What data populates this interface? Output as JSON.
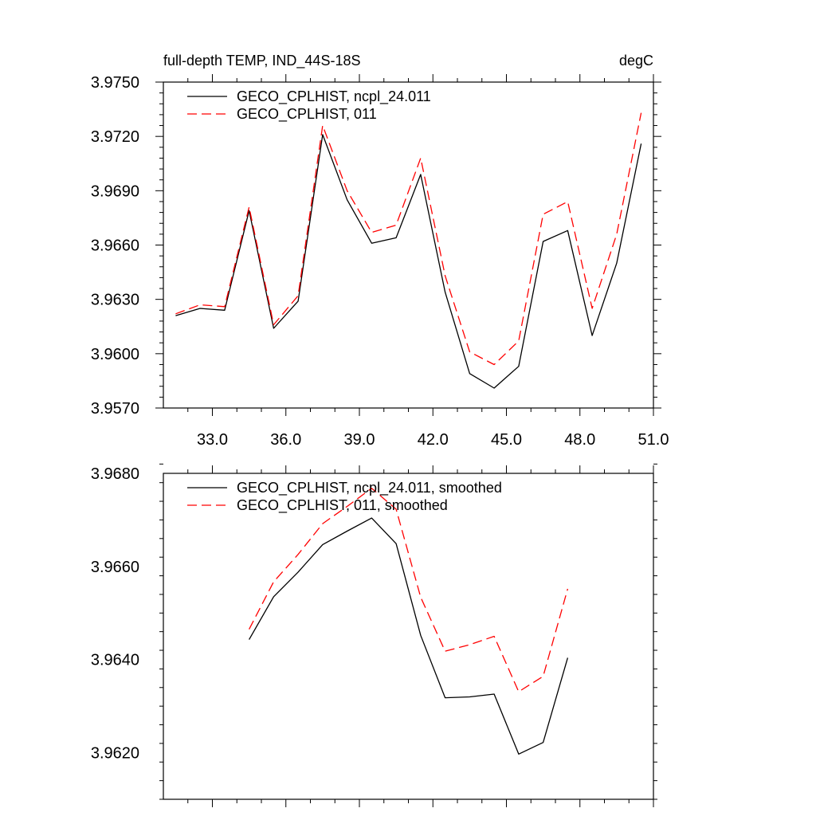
{
  "chart_data": [
    {
      "type": "line",
      "title": "full-depth TEMP, IND_44S-18S",
      "units": "degC",
      "xlabel": "",
      "ylabel": "",
      "xlim": [
        31.0,
        51.0
      ],
      "ylim": [
        3.957,
        3.975
      ],
      "xticks": [
        33.0,
        36.0,
        39.0,
        42.0,
        45.0,
        48.0,
        51.0
      ],
      "xtick_labels": [
        "33.0",
        "36.0",
        "39.0",
        "42.0",
        "45.0",
        "48.0",
        "51.0"
      ],
      "yticks": [
        3.957,
        3.96,
        3.963,
        3.966,
        3.969,
        3.972,
        3.975
      ],
      "ytick_labels": [
        "3.9570",
        "3.9600",
        "3.9630",
        "3.9660",
        "3.9690",
        "3.9720",
        "3.9750"
      ],
      "legend_position": "top-left",
      "x": [
        31.5,
        32.5,
        33.5,
        34.5,
        35.5,
        36.5,
        37.5,
        38.5,
        39.5,
        40.5,
        41.5,
        42.5,
        43.5,
        44.5,
        45.5,
        46.5,
        47.5,
        48.5,
        49.5,
        50.5
      ],
      "series": [
        {
          "name": "GECO_CPLHIST, ncpl_24.011",
          "color": "#000000",
          "dash": "solid",
          "values": [
            3.9621,
            3.9625,
            3.9624,
            3.9679,
            3.9614,
            3.9629,
            3.9721,
            3.9685,
            3.9661,
            3.9664,
            3.9699,
            3.9634,
            3.9589,
            3.9581,
            3.9593,
            3.9662,
            3.9668,
            3.961,
            3.965,
            3.9716
          ]
        },
        {
          "name": "GECO_CPLHIST, 011",
          "color": "#ff0000",
          "dash": "dashed",
          "values": [
            3.9622,
            3.9627,
            3.9626,
            3.9681,
            3.9616,
            3.9632,
            3.9726,
            3.969,
            3.9667,
            3.9671,
            3.9708,
            3.9643,
            3.9601,
            3.9594,
            3.9607,
            3.9677,
            3.9684,
            3.9625,
            3.9666,
            3.9733
          ]
        }
      ]
    },
    {
      "type": "line",
      "title": "",
      "xlabel": "",
      "ylabel": "",
      "xlim": [
        31.0,
        51.0
      ],
      "ylim": [
        3.961,
        3.968
      ],
      "yticks": [
        3.962,
        3.964,
        3.966,
        3.968
      ],
      "ytick_labels": [
        "3.9620",
        "3.9640",
        "3.9660",
        "3.9680"
      ],
      "legend_position": "top-left",
      "x": [
        34.5,
        35.5,
        36.5,
        37.5,
        38.5,
        39.5,
        40.5,
        41.5,
        42.5,
        43.5,
        44.5,
        45.5,
        46.5,
        47.5
      ],
      "series": [
        {
          "name": "GECO_CPLHIST, ncpl_24.011, smoothed",
          "color": "#000000",
          "dash": "solid",
          "values": [
            3.96443,
            3.96535,
            3.96588,
            3.96647,
            3.96676,
            3.96704,
            3.96649,
            3.96452,
            3.96318,
            3.9632,
            3.96326,
            3.96197,
            3.96222,
            3.96404
          ]
        },
        {
          "name": "GECO_CPLHIST, 011, smoothed",
          "color": "#ff0000",
          "dash": "dashed",
          "values": [
            3.96465,
            3.96567,
            3.96626,
            3.96692,
            3.96729,
            3.96768,
            3.96723,
            3.96534,
            3.96418,
            3.96432,
            3.9645,
            3.96331,
            3.96364,
            3.96552
          ]
        }
      ]
    }
  ]
}
